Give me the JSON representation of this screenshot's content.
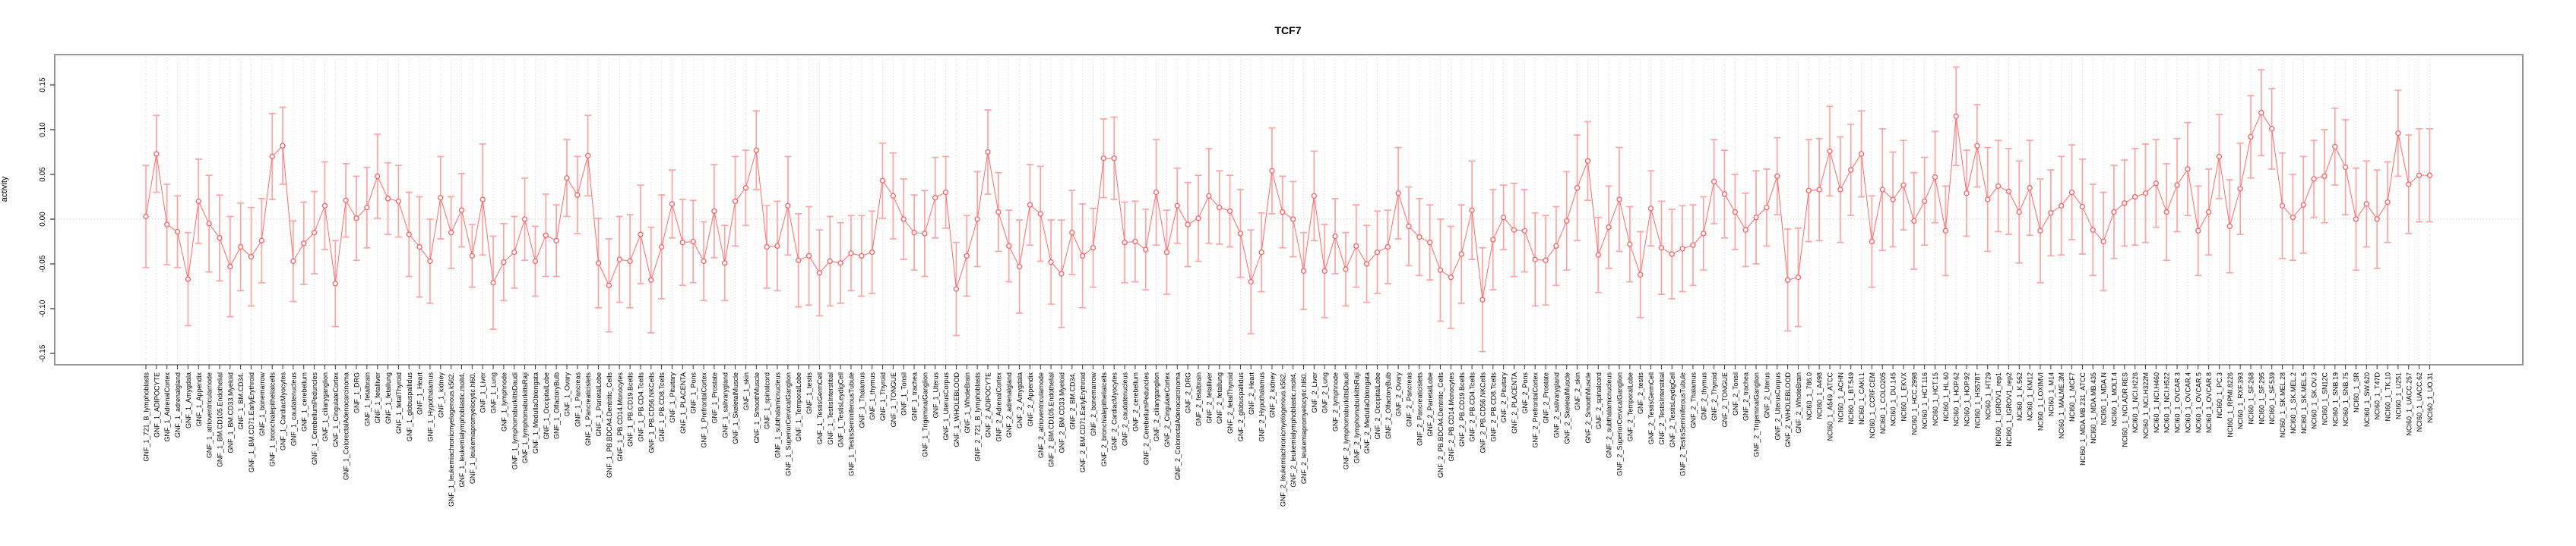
{
  "title": "TCF7",
  "chart_data": {
    "type": "line",
    "subtype": "points-with-error-bars",
    "title": "TCF7",
    "xlabel": "",
    "ylabel": "activity",
    "ylim": [
      -0.18,
      0.18
    ],
    "yticks": [
      0.15,
      0.1,
      0.05,
      0.0,
      -0.05,
      -0.1,
      -0.15
    ],
    "ytick_labels": [
      "0.15",
      "0.10",
      "0.05",
      "0.00",
      "-0.05",
      "-0.10",
      "-0.15"
    ],
    "grid": "vertical-dotted-per-category, dotted-zero-line",
    "legend": "none",
    "colors": {
      "point": "#ff5f5f",
      "line": "#ff6a6a",
      "errorbar": "#ffa3a3",
      "gridline": "#d9d9d9",
      "zeroline": "#c0c0c0",
      "box": "#969696",
      "axis": "#333333",
      "text": "#000000"
    },
    "categories": [
      "GNF_1_721_B_lymphoblasts",
      "GNF_1_ADIPOCYTE",
      "GNF_1_AdrenalCortex",
      "GNF_1_adrenalgland",
      "GNF_1_Amygdala",
      "GNF_1_Appendix",
      "GNF_1_atrioventricularnode",
      "GNF_1_BM.CD105.Endothelial",
      "GNF_1_BM.CD33.Myeloid",
      "GNF_1_BM.CD34.",
      "GNF_1_BM.CD71.EarlyErythroid",
      "GNF_1_bonemarrow",
      "GNF_1_bronchialepithelialcells",
      "GNF_1_CardiacMyocytes",
      "GNF_1_caudatenucleus",
      "GNF_1_cerebellum",
      "GNF_1_CerebellumPeduncles",
      "GNF_1_ciliaryganglion",
      "GNF_1_CingulateCortex",
      "GNF_1_ColorectalAdenocarcinoma",
      "GNF_1_DRG",
      "GNF_1_fetalbrain",
      "GNF_1_fetalliver",
      "GNF_1_fetallung",
      "GNF_1_fetalThyroid",
      "GNF_1_globuspallidus",
      "GNF_1_Heart",
      "GNF_1_Hypothalamus",
      "GNF_1_kidney",
      "GNF_1_leukemiachronicmyelogenous.k562.",
      "GNF_1_leukemialymphoblastic.molt4.",
      "GNF_1_leukemiapromyelocytic.hl60.",
      "GNF_1_Liver",
      "GNF_1_Lung",
      "GNF_1_lymphnode",
      "GNF_1_lymphomaburkittsDaudi",
      "GNF_1_lymphomaburkittsRaji",
      "GNF_1_MedullaOblongata",
      "GNF_1_OccipitalLobe",
      "GNF_1_OlfactoryBulb",
      "GNF_1_Ovary",
      "GNF_1_Pancreas",
      "GNF_1_Pancreaticislets",
      "GNF_1_ParietalLobe",
      "GNF_1_PB.BDCA4.Dentritic_Cells",
      "GNF_1_PB.CD14.Monocytes",
      "GNF_1_PB.CD19.Bcells",
      "GNF_1_PB.CD4.Tcells",
      "GNF_1_PB.CD56.NKCells",
      "GNF_1_PB.CD8.Tcells",
      "GNF_1_Pituitary",
      "GNF_1_PLACENTA",
      "GNF_1_Pons",
      "GNF_1_PrefrontalCortex",
      "GNF_1_Prostate",
      "GNF_1_salivarygland",
      "GNF_1_SkeletalMuscle",
      "GNF_1_skin",
      "GNF_1_SmoothMuscle",
      "GNF_1_spinalcord",
      "GNF_1_subthalamicnucleus",
      "GNF_1_SuperiorCervicalGanglion",
      "GNF_1_TemporalLobe",
      "GNF_1_testis",
      "GNF_1_TestisGermCell",
      "GNF_1_TestisInterstitial",
      "GNF_1_TestisLeydigCell",
      "GNF_1_TestisSeminiferousTubule",
      "GNF_1_Thalamus",
      "GNF_1_thymus",
      "GNF_1_Thyroid",
      "GNF_1_TONGUE",
      "GNF_1_Tonsil",
      "GNF_1_trachea",
      "GNF_1_TrigeminalGanglion",
      "GNF_1_Uterus",
      "GNF_1_UterusCorpus",
      "GNF_1_WHOLEBLOOD",
      "GNF_1_WholeBrain",
      "GNF_2_721_B_lymphoblasts",
      "GNF_2_ADIPOCYTE",
      "GNF_2_AdrenalCortex",
      "GNF_2_adrenalgland",
      "GNF_2_Amygdala",
      "GNF_2_Appendix",
      "GNF_2_atrioventricularnode",
      "GNF_2_BM.CD105.Endothelial",
      "GNF_2_BM.CD33.Myeloid",
      "GNF_2_BM.CD34.",
      "GNF_2_BM.CD71.EarlyErythroid",
      "GNF_2_bonemarrow",
      "GNF_2_bronchialepithelialcells",
      "GNF_2_CardiacMyocytes",
      "GNF_2_caudatenucleus",
      "GNF_2_cerebellum",
      "GNF_2_CerebellumPeduncles",
      "GNF_2_ciliaryganglion",
      "GNF_2_CingulateCortex",
      "GNF_2_ColorectalAdenocarcinoma",
      "GNF_2_DRG",
      "GNF_2_fetalbrain",
      "GNF_2_fetalliver",
      "GNF_2_fetallung",
      "GNF_2_fetalThyroid",
      "GNF_2_globuspallidus",
      "GNF_2_Heart",
      "GNF_2_Hypothalamus",
      "GNF_2_kidney",
      "GNF_2_leukemiachronicmyelogenous.k562.",
      "GNF_2_leukemialymphoblastic.molt4.",
      "GNF_2_leukemiapromyelocytic.hl60.",
      "GNF_2_Liver",
      "GNF_2_Lung",
      "GNF_2_lymphnode",
      "GNF_2_lymphomaburkittsDaudi",
      "GNF_2_lymphomaburkittsRaji",
      "GNF_2_MedullaOblongata",
      "GNF_2_OccipitalLobe",
      "GNF_2_OlfactoryBulb",
      "GNF_2_Ovary",
      "GNF_2_Pancreas",
      "GNF_2_Pancreaticislets",
      "GNF_2_ParietalLobe",
      "GNF_2_PB.BDCA4.Dentritic_Cells",
      "GNF_2_PB.CD14.Monocytes",
      "GNF_2_PB.CD19.Bcells",
      "GNF_2_PB.CD4.Tcells",
      "GNF_2_PB.CD56.NKCells",
      "GNF_2_PB.CD8.Tcells",
      "GNF_2_Pituitary",
      "GNF_2_PLACENTA",
      "GNF_2_Pons",
      "GNF_2_PrefrontalCortex",
      "GNF_2_Prostate",
      "GNF_2_salivarygland",
      "GNF_2_SkeletalMuscle",
      "GNF_2_skin",
      "GNF_2_SmoothMuscle",
      "GNF_2_spinalcord",
      "GNF_2_subthalamicnucleus",
      "GNF_2_SuperiorCervicalGanglion",
      "GNF_2_TemporalLobe",
      "GNF_2_testis",
      "GNF_2_TestisGermCell",
      "GNF_2_TestisInterstitial",
      "GNF_2_TestisLeydigCell",
      "GNF_2_TestisSeminiferousTubule",
      "GNF_2_Thalamus",
      "GNF_2_thymus",
      "GNF_2_Thyroid",
      "GNF_2_TONGUE",
      "GNF_2_Tonsil",
      "GNF_2_trachea",
      "GNF_2_TrigeminalGanglion",
      "GNF_2_Uterus",
      "GNF_2_UterusCorpus",
      "GNF_2_WHOLEBLOOD",
      "GNF_2_WholeBrain",
      "NCI60_1_786.0",
      "NCI60_1_A498",
      "NCI60_1_A549_ATCC",
      "NCI60_1_ACHN",
      "NCI60_1_BT.549",
      "NCI60_1_CAKI.1",
      "NCI60_1_CCRF.CEM",
      "NCI60_1_COLO205",
      "NCI60_1_DU.145",
      "NCI60_1_EKVX",
      "NCI60_1_HCC.2998",
      "NCI60_1_HCT.116",
      "NCI60_1_HCT.15",
      "NCI60_1_HL.60",
      "NCI60_1_HOP.62",
      "NCI60_1_HOP.92",
      "NCI60_1_HS578T",
      "NCI60_1_HT29",
      "NCI60_1_IGROV1_rep1",
      "NCI60_1_IGROV1_rep2",
      "NCI60_1_K.562",
      "NCI60_1_KM12",
      "NCI60_1_LOXIMVI",
      "NCI60_1_M14",
      "NCI60_1_MALME.3M",
      "NCI60_1_MCF7",
      "NCI60_1_MDA.MB.231_ATCC",
      "NCI60_1_MDA.MB.435",
      "NCI60_1_MDA.N",
      "NCI60_1_MOLT.4",
      "NCI60_1_NCI.ADR.RES",
      "NCI60_1_NCI.H226",
      "NCI60_1_NCI.H322M",
      "NCI60_1_NCI.H460",
      "NCI60_1_NCI.H522",
      "NCI60_1_OVCAR.3",
      "NCI60_1_OVCAR.4",
      "NCI60_1_OVCAR.5",
      "NCI60_1_OVCAR.8",
      "NCI60_1_PC.3",
      "NCI60_1_RPMI.8226",
      "NCI60_1_RXF.393",
      "NCI60_1_SF.268",
      "NCI60_1_SF.295",
      "NCI60_1_SF.539",
      "NCI60_1_SK.MEL.28",
      "NCI60_1_SK.MEL.2",
      "NCI60_1_SK.MEL.5",
      "NCI60_1_SK.OV.3",
      "NCI60_1_SN12C",
      "NCI60_1_SNB.19",
      "NCI60_1_SNB.75",
      "NCI60_1_SR",
      "NCI60_1_SW.620",
      "NCI60_1_T47D",
      "NCI60_1_TK.10",
      "NCI60_1_U251",
      "NCI60_1_UACC.257",
      "NCI60_1_UACC.62",
      "NCI60_1_UO.31"
    ],
    "values": [
      0.003,
      0.073,
      -0.006,
      -0.014,
      -0.067,
      0.02,
      -0.005,
      -0.021,
      -0.053,
      -0.031,
      -0.042,
      -0.024,
      0.07,
      0.082,
      -0.047,
      -0.027,
      -0.015,
      0.015,
      -0.072,
      0.021,
      0.001,
      0.013,
      0.048,
      0.023,
      0.02,
      -0.017,
      -0.031,
      -0.047,
      0.024,
      -0.015,
      0.01,
      -0.041,
      0.022,
      -0.071,
      -0.048,
      -0.037,
      0.0,
      -0.047,
      -0.018,
      -0.024,
      0.046,
      0.027,
      0.071,
      -0.049,
      -0.074,
      -0.045,
      -0.047,
      -0.017,
      -0.068,
      -0.031,
      0.017,
      -0.026,
      -0.025,
      -0.047,
      0.009,
      -0.049,
      0.02,
      0.035,
      0.077,
      -0.031,
      -0.03,
      0.015,
      -0.046,
      -0.041,
      -0.06,
      -0.047,
      -0.049,
      -0.038,
      -0.041,
      -0.037,
      0.043,
      0.026,
      0.0,
      -0.015,
      -0.016,
      0.024,
      0.03,
      -0.078,
      -0.041,
      0.0,
      0.075,
      0.008,
      -0.03,
      -0.053,
      0.016,
      0.006,
      -0.048,
      -0.061,
      -0.015,
      -0.041,
      -0.032,
      0.068,
      0.068,
      -0.026,
      -0.025,
      -0.034,
      0.03,
      -0.037,
      0.015,
      -0.006,
      0.001,
      0.026,
      0.013,
      0.009,
      -0.016,
      -0.07,
      -0.037,
      0.054,
      0.008,
      0.0,
      -0.058,
      0.026,
      -0.058,
      -0.019,
      -0.056,
      -0.03,
      -0.05,
      -0.037,
      -0.031,
      0.029,
      -0.008,
      -0.02,
      -0.026,
      -0.057,
      -0.065,
      -0.039,
      0.01,
      -0.09,
      -0.023,
      0.002,
      -0.012,
      -0.013,
      -0.045,
      -0.046,
      -0.03,
      -0.002,
      0.035,
      0.065,
      -0.04,
      -0.009,
      0.022,
      -0.028,
      -0.062,
      0.012,
      -0.032,
      -0.039,
      -0.033,
      -0.029,
      -0.016,
      0.042,
      0.028,
      0.008,
      -0.012,
      0.002,
      0.013,
      0.048,
      -0.068,
      -0.065,
      0.032,
      0.033,
      0.076,
      0.033,
      0.055,
      0.073,
      -0.025,
      0.033,
      0.022,
      0.038,
      -0.002,
      0.02,
      0.047,
      -0.013,
      0.115,
      0.029,
      0.082,
      0.022,
      0.037,
      0.031,
      0.008,
      0.035,
      -0.013,
      0.007,
      0.015,
      0.03,
      0.014,
      -0.012,
      -0.025,
      0.008,
      0.018,
      0.025,
      0.029,
      0.04,
      0.008,
      0.038,
      0.056,
      -0.013,
      0.008,
      0.07,
      -0.008,
      0.034,
      0.092,
      0.119,
      0.101,
      0.015,
      0.002,
      0.016,
      0.045,
      0.048,
      0.081,
      0.058,
      0.0,
      0.017,
      0.0,
      0.019,
      0.096,
      0.039,
      0.049,
      0.049
    ],
    "errors": [
      0.057,
      0.043,
      0.045,
      0.04,
      0.052,
      0.047,
      0.054,
      0.048,
      0.056,
      0.049,
      0.055,
      0.047,
      0.048,
      0.043,
      0.045,
      0.046,
      0.046,
      0.049,
      0.048,
      0.041,
      0.047,
      0.045,
      0.047,
      0.04,
      0.04,
      0.047,
      0.056,
      0.047,
      0.046,
      0.04,
      0.041,
      0.035,
      0.062,
      0.052,
      0.043,
      0.04,
      0.046,
      0.039,
      0.046,
      0.04,
      0.043,
      0.043,
      0.045,
      0.05,
      0.052,
      0.048,
      0.052,
      0.055,
      0.059,
      0.058,
      0.038,
      0.048,
      0.046,
      0.044,
      0.052,
      0.042,
      0.05,
      0.042,
      0.044,
      0.046,
      0.05,
      0.055,
      0.052,
      0.055,
      0.048,
      0.05,
      0.045,
      0.042,
      0.045,
      0.046,
      0.042,
      0.048,
      0.045,
      0.042,
      0.048,
      0.045,
      0.04,
      0.052,
      0.045,
      0.053,
      0.047,
      0.044,
      0.04,
      0.052,
      0.045,
      0.053,
      0.047,
      0.06,
      0.047,
      0.058,
      0.044,
      0.044,
      0.046,
      0.045,
      0.045,
      0.045,
      0.059,
      0.047,
      0.042,
      0.047,
      0.048,
      0.053,
      0.041,
      0.04,
      0.049,
      0.058,
      0.044,
      0.048,
      0.04,
      0.042,
      0.043,
      0.05,
      0.052,
      0.042,
      0.041,
      0.046,
      0.043,
      0.046,
      0.041,
      0.051,
      0.044,
      0.043,
      0.042,
      0.057,
      0.057,
      0.055,
      0.055,
      0.058,
      0.056,
      0.036,
      0.052,
      0.046,
      0.052,
      0.05,
      0.044,
      0.055,
      0.059,
      0.044,
      0.042,
      0.046,
      0.058,
      0.042,
      0.048,
      0.042,
      0.052,
      0.05,
      0.048,
      0.045,
      0.041,
      0.047,
      0.049,
      0.042,
      0.041,
      0.052,
      0.043,
      0.043,
      0.057,
      0.055,
      0.057,
      0.057,
      0.05,
      0.059,
      0.051,
      0.048,
      0.051,
      0.068,
      0.053,
      0.05,
      0.054,
      0.049,
      0.051,
      0.05,
      0.055,
      0.048,
      0.046,
      0.058,
      0.051,
      0.048,
      0.057,
      0.053,
      0.058,
      0.048,
      0.055,
      0.053,
      0.053,
      0.051,
      0.055,
      0.052,
      0.048,
      0.054,
      0.055,
      0.049,
      0.054,
      0.052,
      0.052,
      0.05,
      0.048,
      0.047,
      0.052,
      0.051,
      0.046,
      0.048,
      0.045,
      0.059,
      0.048,
      0.054,
      0.043,
      0.052,
      0.043,
      0.053,
      0.057,
      0.048,
      0.055,
      0.045,
      0.048,
      0.055,
      0.052,
      0.052
    ]
  }
}
